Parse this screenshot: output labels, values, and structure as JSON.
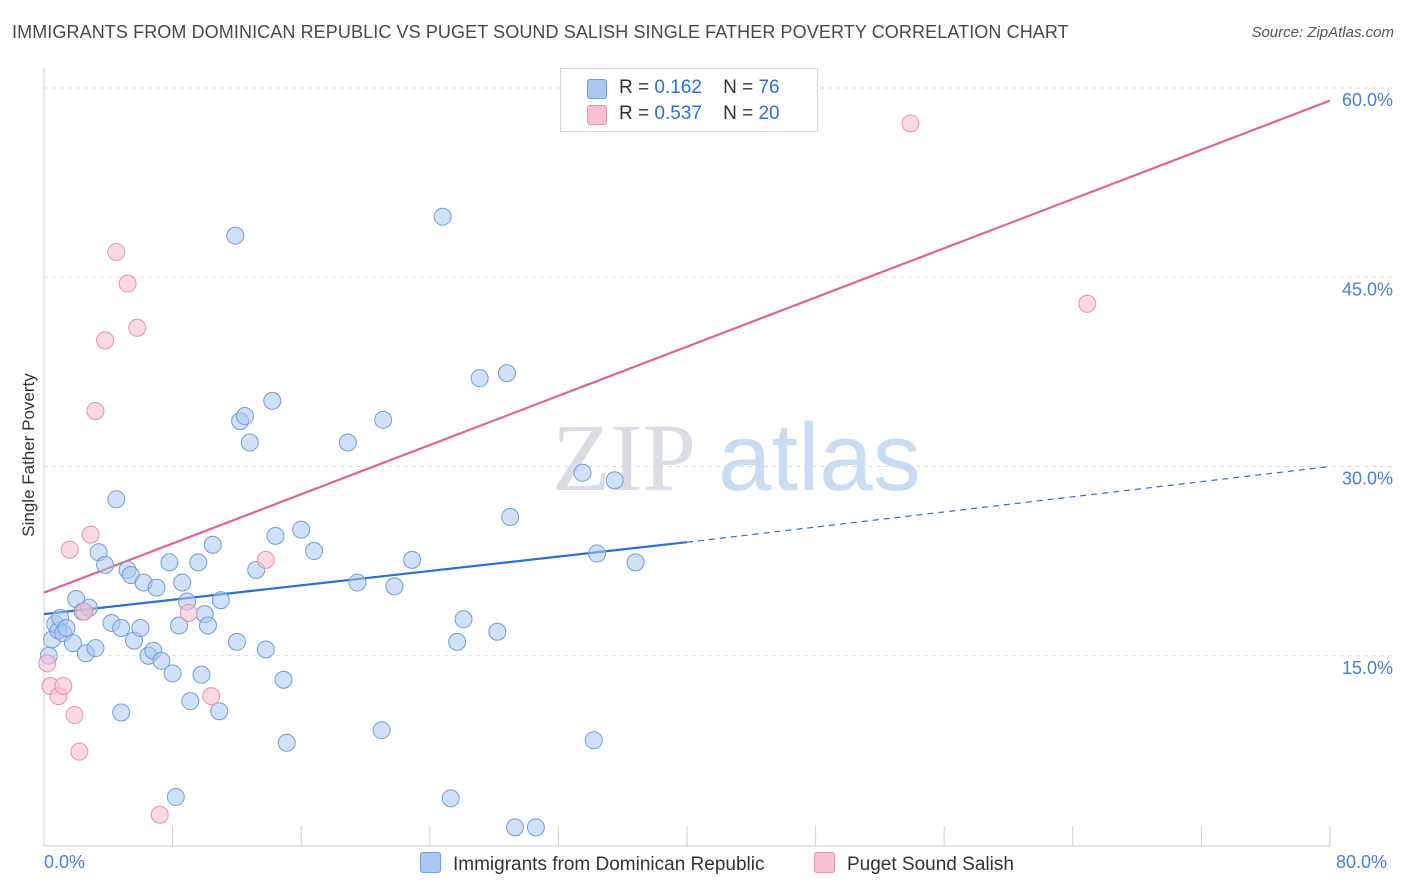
{
  "title": "IMMIGRANTS FROM DOMINICAN REPUBLIC VS PUGET SOUND SALISH SINGLE FATHER POVERTY CORRELATION CHART",
  "source": "Source: ZipAtlas.com",
  "watermark": {
    "zip": "ZIP",
    "atlas": "atlas"
  },
  "legend": {
    "rows": [
      {
        "r_label": "R =",
        "r_value": "0.162",
        "n_label": "N =",
        "n_value": "76"
      },
      {
        "r_label": "R =",
        "r_value": "0.537",
        "n_label": "N =",
        "n_value": "20"
      }
    ]
  },
  "colors": {
    "blue_fill": "#a9c7ef",
    "blue_stroke": "#6f9fd8",
    "blue_line": "#2a6fd1",
    "pink_fill": "#f6c0d0",
    "pink_stroke": "#e694b0",
    "pink_line": "#e0648e",
    "tick_text": "#4a7fd0",
    "grid": "#dcdcdc"
  },
  "chart_data": {
    "type": "scatter",
    "title": "IMMIGRANTS FROM DOMINICAN REPUBLIC VS PUGET SOUND SALISH SINGLE FATHER POVERTY CORRELATION CHART",
    "xlabel": "",
    "ylabel": "Single Father Poverty",
    "xlim": [
      0,
      80
    ],
    "ylim": [
      0,
      60
    ],
    "x_tick_labels": [
      "0.0%",
      "80.0%"
    ],
    "y_ticks": [
      15,
      30,
      45,
      60
    ],
    "y_tick_labels": [
      "15.0%",
      "30.0%",
      "45.0%",
      "60.0%"
    ],
    "series": [
      {
        "name": "Immigrants from Dominican Republic",
        "color": "blue",
        "R": 0.162,
        "N": 76,
        "trend": {
          "x0": 0,
          "y0": 18.3,
          "x1": 40,
          "y1": 24.0,
          "dash_to_x": 80,
          "dash_to_y": 30.0
        },
        "points": [
          [
            0.3,
            15.0
          ],
          [
            0.5,
            16.3
          ],
          [
            0.7,
            17.5
          ],
          [
            0.9,
            17.0
          ],
          [
            1.0,
            18.0
          ],
          [
            1.2,
            16.8
          ],
          [
            1.4,
            17.2
          ],
          [
            1.8,
            16.0
          ],
          [
            2.0,
            19.5
          ],
          [
            2.4,
            18.5
          ],
          [
            2.6,
            15.2
          ],
          [
            2.8,
            18.8
          ],
          [
            3.2,
            15.6
          ],
          [
            3.4,
            23.2
          ],
          [
            3.8,
            22.2
          ],
          [
            4.2,
            17.6
          ],
          [
            4.5,
            27.4
          ],
          [
            4.8,
            17.2
          ],
          [
            4.8,
            10.5
          ],
          [
            5.2,
            21.8
          ],
          [
            5.4,
            21.4
          ],
          [
            5.6,
            16.2
          ],
          [
            6.0,
            17.2
          ],
          [
            6.2,
            20.8
          ],
          [
            6.5,
            15.0
          ],
          [
            6.8,
            15.4
          ],
          [
            7.0,
            20.4
          ],
          [
            7.3,
            14.6
          ],
          [
            7.8,
            22.4
          ],
          [
            8.0,
            13.6
          ],
          [
            8.2,
            3.8
          ],
          [
            8.4,
            17.4
          ],
          [
            8.6,
            20.8
          ],
          [
            8.9,
            19.3
          ],
          [
            9.1,
            11.4
          ],
          [
            9.6,
            22.4
          ],
          [
            9.8,
            13.5
          ],
          [
            10.0,
            18.3
          ],
          [
            10.2,
            17.4
          ],
          [
            10.5,
            23.8
          ],
          [
            10.9,
            10.6
          ],
          [
            11.0,
            19.4
          ],
          [
            11.9,
            48.3
          ],
          [
            12.0,
            16.1
          ],
          [
            12.2,
            33.6
          ],
          [
            12.5,
            34.0
          ],
          [
            12.8,
            31.9
          ],
          [
            13.2,
            21.8
          ],
          [
            13.8,
            15.5
          ],
          [
            14.2,
            35.2
          ],
          [
            14.4,
            24.5
          ],
          [
            14.9,
            13.1
          ],
          [
            15.1,
            8.1
          ],
          [
            16.0,
            25.0
          ],
          [
            16.8,
            23.3
          ],
          [
            18.9,
            31.9
          ],
          [
            19.5,
            20.8
          ],
          [
            21.0,
            9.1
          ],
          [
            21.1,
            33.7
          ],
          [
            21.8,
            20.5
          ],
          [
            22.9,
            22.6
          ],
          [
            24.8,
            49.8
          ],
          [
            25.3,
            3.7
          ],
          [
            25.7,
            16.1
          ],
          [
            26.1,
            17.9
          ],
          [
            27.1,
            37.0
          ],
          [
            28.2,
            16.9
          ],
          [
            28.8,
            37.4
          ],
          [
            29.0,
            26.0
          ],
          [
            29.3,
            1.4
          ],
          [
            30.6,
            1.4
          ],
          [
            33.5,
            29.5
          ],
          [
            34.2,
            8.3
          ],
          [
            34.4,
            23.1
          ],
          [
            35.5,
            28.9
          ],
          [
            36.8,
            22.4
          ]
        ]
      },
      {
        "name": "Puget Sound Salish",
        "color": "pink",
        "R": 0.537,
        "N": 20,
        "trend": {
          "x0": 0,
          "y0": 20.0,
          "x1": 80,
          "y1": 59.0
        },
        "points": [
          [
            0.2,
            14.4
          ],
          [
            0.4,
            12.6
          ],
          [
            0.9,
            11.8
          ],
          [
            1.2,
            12.6
          ],
          [
            1.6,
            23.4
          ],
          [
            1.9,
            10.3
          ],
          [
            2.2,
            7.4
          ],
          [
            2.5,
            18.5
          ],
          [
            2.9,
            24.6
          ],
          [
            3.2,
            34.4
          ],
          [
            3.8,
            40.0
          ],
          [
            4.5,
            47.0
          ],
          [
            5.2,
            44.5
          ],
          [
            5.8,
            41.0
          ],
          [
            7.2,
            2.4
          ],
          [
            9.0,
            18.4
          ],
          [
            10.4,
            11.8
          ],
          [
            13.8,
            22.6
          ],
          [
            53.9,
            57.2
          ],
          [
            64.9,
            42.9
          ]
        ]
      }
    ]
  },
  "bottom_legend": {
    "blue_label": "Immigrants from Dominican Republic",
    "pink_label": "Puget Sound Salish"
  }
}
